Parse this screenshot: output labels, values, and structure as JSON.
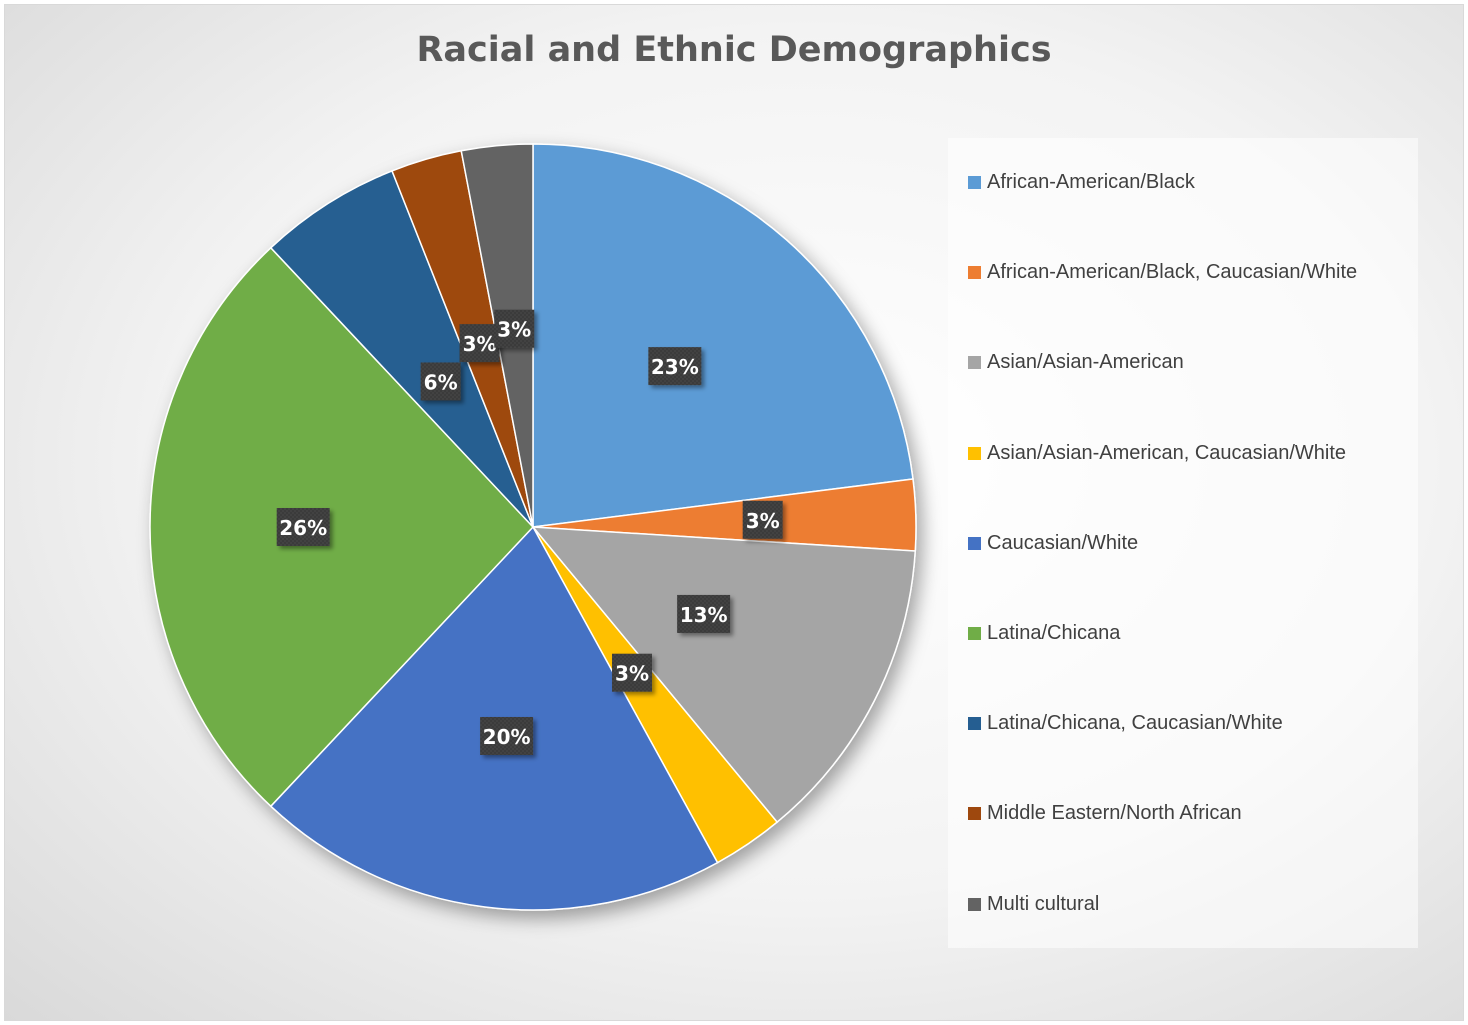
{
  "chart_data": {
    "type": "pie",
    "title": "Racial and Ethnic Demographics",
    "categories": [
      "African-American/Black",
      "African-American/Black, Caucasian/White",
      "Asian/Asian-American",
      "Asian/Asian-American, Caucasian/White",
      "Caucasian/White",
      "Latina/Chicana",
      "Latina/Chicana, Caucasian/White",
      "Middle Eastern/North African",
      "Multi cultural"
    ],
    "values": [
      23,
      3,
      13,
      3,
      20,
      26,
      6,
      3,
      3
    ],
    "data_labels": [
      "23%",
      "3%",
      "13%",
      "3%",
      "20%",
      "26%",
      "6%",
      "3%",
      "3%"
    ],
    "colors": [
      "#5b9bd5",
      "#ed7d31",
      "#a5a5a5",
      "#ffc000",
      "#4472c4",
      "#70ad47",
      "#255e91",
      "#9e480e",
      "#636363"
    ],
    "legend_position": "right",
    "start_angle": "12 o'clock",
    "direction": "clockwise"
  }
}
